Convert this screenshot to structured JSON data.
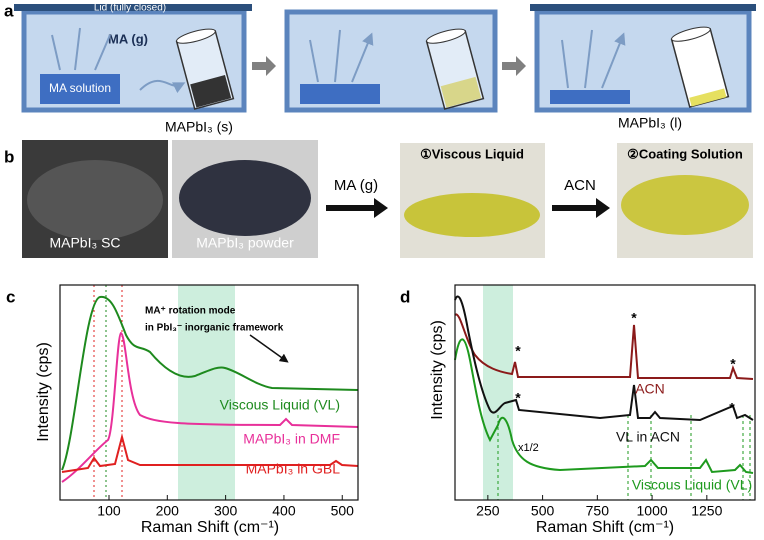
{
  "panel_a": {
    "label": "a",
    "lid": "Lid (fully closed)",
    "gas": "MA (g)",
    "solution": "MA solution",
    "solid": "MAPbI₃ (s)",
    "liquid": "MAPbI₃ (l)"
  },
  "panel_b": {
    "label": "b",
    "photos": [
      "MAPbI₃ SC",
      "MAPbI₃ powder",
      "①Viscous Liquid",
      "②Coating Solution"
    ],
    "arrows": [
      "MA (g)",
      "ACN"
    ]
  },
  "chart_data": [
    {
      "type": "line",
      "label": "c",
      "xlabel": "Raman Shift (cm⁻¹)",
      "ylabel": "Intensity (cps)",
      "xlim": [
        16,
        527
      ],
      "xticks": [
        100,
        200,
        300,
        400,
        500
      ],
      "annotation": [
        "MA⁺ rotation mode",
        "in PbI₃⁻ inorganic framework"
      ],
      "series": [
        {
          "name": "Viscous Liquid (VL)",
          "color": "#1e8a1e"
        },
        {
          "name": "MAPbI₃ in DMF",
          "color": "#e8309a"
        },
        {
          "name": "MAPbI₃ in GBL",
          "color": "#e02020"
        }
      ]
    },
    {
      "type": "line",
      "label": "d",
      "xlabel": "Raman Shift (cm⁻¹)",
      "ylabel": "Intensity (cps)",
      "xlim": [
        100,
        1470
      ],
      "xticks": [
        250,
        500,
        750,
        1000,
        1250
      ],
      "annotation": [
        "x1/2"
      ],
      "peak_mark": "*",
      "series": [
        {
          "name": "ACN",
          "color": "#8b1a1a"
        },
        {
          "name": "VL in ACN",
          "color": "#111111"
        },
        {
          "name": "Viscous Liquid (VL)",
          "color": "#1e9a1e"
        }
      ]
    }
  ]
}
